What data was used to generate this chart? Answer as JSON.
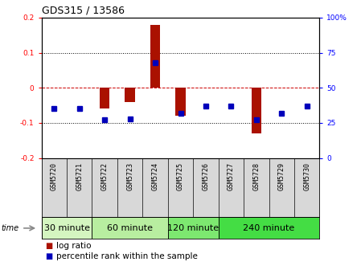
{
  "title": "GDS315 / 13586",
  "samples": [
    "GSM5720",
    "GSM5721",
    "GSM5722",
    "GSM5723",
    "GSM5724",
    "GSM5725",
    "GSM5726",
    "GSM5727",
    "GSM5728",
    "GSM5729",
    "GSM5730"
  ],
  "log_ratio": [
    0.0,
    0.0,
    -0.06,
    -0.04,
    0.18,
    -0.08,
    0.0,
    0.0,
    -0.13,
    0.0,
    0.0
  ],
  "percentile": [
    35,
    35,
    27,
    28,
    68,
    32,
    37,
    37,
    27,
    32,
    37
  ],
  "groups": [
    {
      "label": "30 minute",
      "start": 0,
      "end": 2,
      "color": "#d4f5c0"
    },
    {
      "label": "60 minute",
      "start": 2,
      "end": 5,
      "color": "#b8eea0"
    },
    {
      "label": "120 minute",
      "start": 5,
      "end": 7,
      "color": "#7de870"
    },
    {
      "label": "240 minute",
      "start": 7,
      "end": 11,
      "color": "#44dd44"
    }
  ],
  "ylim_left": [
    -0.2,
    0.2
  ],
  "ylim_right": [
    0,
    100
  ],
  "bar_color": "#aa1100",
  "dot_color": "#0000bb",
  "zero_line_color": "#cc0000",
  "grid_line_color": "#000000",
  "background_color": "#ffffff",
  "sample_bg_color": "#d8d8d8",
  "title_fontsize": 9,
  "tick_fontsize": 6.5,
  "sample_fontsize": 6,
  "group_fontsize": 8,
  "legend_fontsize": 7.5
}
